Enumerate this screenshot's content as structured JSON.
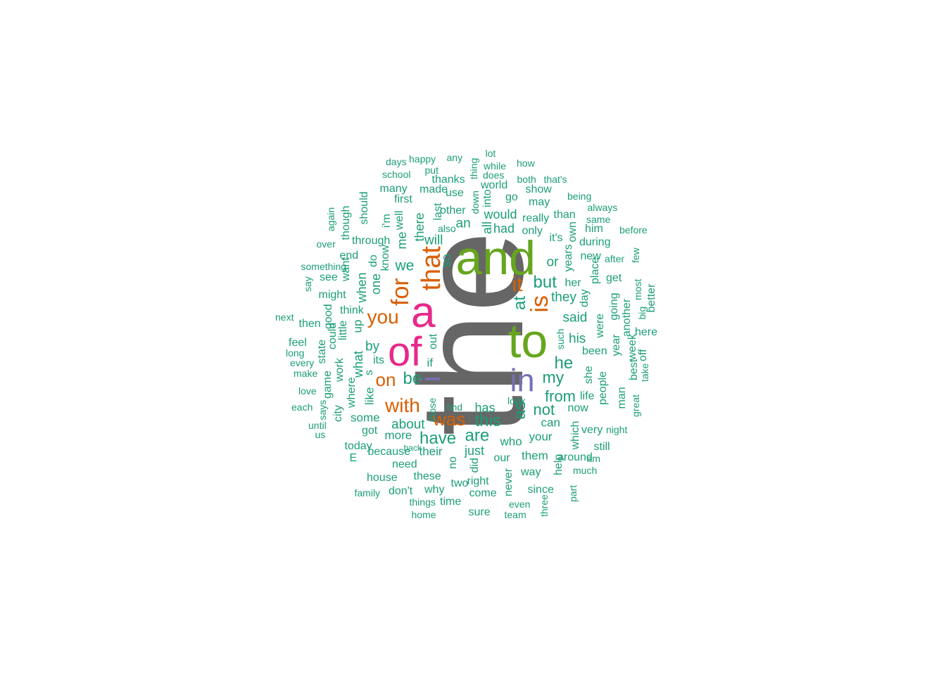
{
  "colors": {
    "gray": "#666666",
    "green": "#66a61e",
    "pink": "#e7298a",
    "purple": "#7570b3",
    "orange": "#d95f02",
    "teal": "#1b9e77"
  },
  "words": [
    {
      "t": "the",
      "c": "gray"
    },
    {
      "t": "and",
      "c": "green"
    },
    {
      "t": "to",
      "c": "green"
    },
    {
      "t": "a",
      "c": "pink"
    },
    {
      "t": "of",
      "c": "pink"
    },
    {
      "t": "in",
      "c": "purple"
    },
    {
      "t": "i",
      "c": "purple"
    },
    {
      "t": "that",
      "c": "orange"
    },
    {
      "t": "for",
      "c": "orange"
    },
    {
      "t": "is",
      "c": "orange"
    },
    {
      "t": "it",
      "c": "orange"
    },
    {
      "t": "you",
      "c": "orange"
    },
    {
      "t": "with",
      "c": "orange"
    },
    {
      "t": "on",
      "c": "orange"
    },
    {
      "t": "was",
      "c": "orange"
    },
    {
      "t": "have",
      "c": "teal"
    },
    {
      "t": "are",
      "c": "teal"
    },
    {
      "t": "this",
      "c": "teal"
    },
    {
      "t": "be",
      "c": "teal"
    },
    {
      "t": "as",
      "c": "teal"
    },
    {
      "t": "at",
      "c": "teal"
    },
    {
      "t": "but",
      "c": "teal"
    },
    {
      "t": "he",
      "c": "teal"
    },
    {
      "t": "my",
      "c": "teal"
    },
    {
      "t": "from",
      "c": "teal"
    },
    {
      "t": "not",
      "c": "teal"
    },
    {
      "t": "we",
      "c": "teal"
    },
    {
      "t": "or",
      "c": "teal"
    },
    {
      "t": "they",
      "c": "teal"
    },
    {
      "t": "said",
      "c": "teal"
    },
    {
      "t": "his",
      "c": "teal"
    },
    {
      "t": "will",
      "c": "teal"
    },
    {
      "t": "by",
      "c": "teal"
    },
    {
      "t": "an",
      "c": "teal"
    },
    {
      "t": "about",
      "c": "teal"
    },
    {
      "t": "has",
      "c": "teal"
    },
    {
      "t": "just",
      "c": "teal"
    },
    {
      "t": "all",
      "c": "teal"
    },
    {
      "t": "had",
      "c": "teal"
    },
    {
      "t": "would",
      "c": "teal"
    },
    {
      "t": "so",
      "c": "teal"
    },
    {
      "t": "there",
      "c": "teal"
    },
    {
      "t": "me",
      "c": "teal"
    },
    {
      "t": "one",
      "c": "teal"
    },
    {
      "t": "when",
      "c": "teal"
    },
    {
      "t": "what",
      "c": "teal"
    },
    {
      "t": "if",
      "c": "teal"
    },
    {
      "t": "out",
      "c": "teal"
    },
    {
      "t": "up",
      "c": "teal"
    },
    {
      "t": "some",
      "c": "teal"
    },
    {
      "t": "like",
      "c": "teal"
    },
    {
      "t": "more",
      "c": "teal"
    },
    {
      "t": "their",
      "c": "teal"
    },
    {
      "t": "who",
      "c": "teal"
    },
    {
      "t": "your",
      "c": "teal"
    },
    {
      "t": "can",
      "c": "teal"
    },
    {
      "t": "them",
      "c": "teal"
    },
    {
      "t": "our",
      "c": "teal"
    },
    {
      "t": "she",
      "c": "teal"
    },
    {
      "t": "been",
      "c": "teal"
    },
    {
      "t": "her",
      "c": "teal"
    },
    {
      "t": "it's",
      "c": "teal"
    },
    {
      "t": "were",
      "c": "teal"
    },
    {
      "t": "year",
      "c": "teal"
    },
    {
      "t": "going",
      "c": "teal"
    },
    {
      "t": "people",
      "c": "teal"
    },
    {
      "t": "now",
      "c": "teal"
    },
    {
      "t": "life",
      "c": "teal"
    },
    {
      "t": "which",
      "c": "teal"
    },
    {
      "t": "very",
      "c": "teal"
    },
    {
      "t": "still",
      "c": "teal"
    },
    {
      "t": "around",
      "c": "teal"
    },
    {
      "t": "am",
      "c": "teal"
    },
    {
      "t": "help",
      "c": "teal"
    },
    {
      "t": "way",
      "c": "teal"
    },
    {
      "t": "much",
      "c": "teal"
    },
    {
      "t": "since",
      "c": "teal"
    },
    {
      "t": "never",
      "c": "teal"
    },
    {
      "t": "even",
      "c": "teal"
    },
    {
      "t": "three",
      "c": "teal"
    },
    {
      "t": "part",
      "c": "teal"
    },
    {
      "t": "team",
      "c": "teal"
    },
    {
      "t": "sure",
      "c": "teal"
    },
    {
      "t": "come",
      "c": "teal"
    },
    {
      "t": "right",
      "c": "teal"
    },
    {
      "t": "two",
      "c": "teal"
    },
    {
      "t": "did",
      "c": "teal"
    },
    {
      "t": "no",
      "c": "teal"
    },
    {
      "t": "time",
      "c": "teal"
    },
    {
      "t": "things",
      "c": "teal"
    },
    {
      "t": "why",
      "c": "teal"
    },
    {
      "t": "these",
      "c": "teal"
    },
    {
      "t": "don't",
      "c": "teal"
    },
    {
      "t": "home",
      "c": "teal"
    },
    {
      "t": "family",
      "c": "teal"
    },
    {
      "t": "house",
      "c": "teal"
    },
    {
      "t": "need",
      "c": "teal"
    },
    {
      "t": "because",
      "c": "teal"
    },
    {
      "t": "back",
      "c": "teal"
    },
    {
      "t": "E",
      "c": "teal"
    },
    {
      "t": "today",
      "c": "teal"
    },
    {
      "t": "got",
      "c": "teal"
    },
    {
      "t": "us",
      "c": "teal"
    },
    {
      "t": "until",
      "c": "teal"
    },
    {
      "t": "each",
      "c": "teal"
    },
    {
      "t": "says",
      "c": "teal"
    },
    {
      "t": "city",
      "c": "teal"
    },
    {
      "t": "where",
      "c": "teal"
    },
    {
      "t": "love",
      "c": "teal"
    },
    {
      "t": "game",
      "c": "teal"
    },
    {
      "t": "work",
      "c": "teal"
    },
    {
      "t": "make",
      "c": "teal"
    },
    {
      "t": "every",
      "c": "teal"
    },
    {
      "t": "long",
      "c": "teal"
    },
    {
      "t": "feel",
      "c": "teal"
    },
    {
      "t": "state",
      "c": "teal"
    },
    {
      "t": "could",
      "c": "teal"
    },
    {
      "t": "little",
      "c": "teal"
    },
    {
      "t": "good",
      "c": "teal"
    },
    {
      "t": "think",
      "c": "teal"
    },
    {
      "t": "then",
      "c": "teal"
    },
    {
      "t": "next",
      "c": "teal"
    },
    {
      "t": "might",
      "c": "teal"
    },
    {
      "t": "see",
      "c": "teal"
    },
    {
      "t": "say",
      "c": "teal"
    },
    {
      "t": "something",
      "c": "teal"
    },
    {
      "t": "end",
      "c": "teal"
    },
    {
      "t": "want",
      "c": "teal"
    },
    {
      "t": "over",
      "c": "teal"
    },
    {
      "t": "again",
      "c": "teal"
    },
    {
      "t": "though",
      "c": "teal"
    },
    {
      "t": "should",
      "c": "teal"
    },
    {
      "t": "through",
      "c": "teal"
    },
    {
      "t": "know",
      "c": "teal"
    },
    {
      "t": "do",
      "c": "teal"
    },
    {
      "t": "i'm",
      "c": "teal"
    },
    {
      "t": "well",
      "c": "teal"
    },
    {
      "t": "first",
      "c": "teal"
    },
    {
      "t": "many",
      "c": "teal"
    },
    {
      "t": "school",
      "c": "teal"
    },
    {
      "t": "days",
      "c": "teal"
    },
    {
      "t": "happy",
      "c": "teal"
    },
    {
      "t": "put",
      "c": "teal"
    },
    {
      "t": "thanks",
      "c": "teal"
    },
    {
      "t": "made",
      "c": "teal"
    },
    {
      "t": "any",
      "c": "teal"
    },
    {
      "t": "use",
      "c": "teal"
    },
    {
      "t": "last",
      "c": "teal"
    },
    {
      "t": "other",
      "c": "teal"
    },
    {
      "t": "also",
      "c": "teal"
    },
    {
      "t": "lot",
      "c": "teal"
    },
    {
      "t": "thing",
      "c": "teal"
    },
    {
      "t": "while",
      "c": "teal"
    },
    {
      "t": "does",
      "c": "teal"
    },
    {
      "t": "world",
      "c": "teal"
    },
    {
      "t": "down",
      "c": "teal"
    },
    {
      "t": "into",
      "c": "teal"
    },
    {
      "t": "go",
      "c": "teal"
    },
    {
      "t": "only",
      "c": "teal"
    },
    {
      "t": "how",
      "c": "teal"
    },
    {
      "t": "both",
      "c": "teal"
    },
    {
      "t": "that's",
      "c": "teal"
    },
    {
      "t": "show",
      "c": "teal"
    },
    {
      "t": "may",
      "c": "teal"
    },
    {
      "t": "really",
      "c": "teal"
    },
    {
      "t": "than",
      "c": "teal"
    },
    {
      "t": "being",
      "c": "teal"
    },
    {
      "t": "always",
      "c": "teal"
    },
    {
      "t": "same",
      "c": "teal"
    },
    {
      "t": "own",
      "c": "teal"
    },
    {
      "t": "him",
      "c": "teal"
    },
    {
      "t": "before",
      "c": "teal"
    },
    {
      "t": "during",
      "c": "teal"
    },
    {
      "t": "years",
      "c": "teal"
    },
    {
      "t": "new",
      "c": "teal"
    },
    {
      "t": "after",
      "c": "teal"
    },
    {
      "t": "few",
      "c": "teal"
    },
    {
      "t": "place",
      "c": "teal"
    },
    {
      "t": "day",
      "c": "teal"
    },
    {
      "t": "get",
      "c": "teal"
    },
    {
      "t": "most",
      "c": "teal"
    },
    {
      "t": "big",
      "c": "teal"
    },
    {
      "t": "better",
      "c": "teal"
    },
    {
      "t": "another",
      "c": "teal"
    },
    {
      "t": "here",
      "c": "teal"
    },
    {
      "t": "week",
      "c": "teal"
    },
    {
      "t": "off",
      "c": "teal"
    },
    {
      "t": "best",
      "c": "teal"
    },
    {
      "t": "take",
      "c": "teal"
    },
    {
      "t": "man",
      "c": "teal"
    },
    {
      "t": "great",
      "c": "teal"
    },
    {
      "t": "night",
      "c": "teal"
    },
    {
      "t": "such",
      "c": "teal"
    },
    {
      "t": "look",
      "c": "teal"
    },
    {
      "t": "find",
      "c": "teal"
    },
    {
      "t": "those",
      "c": "teal"
    },
    {
      "t": "its",
      "c": "teal"
    },
    {
      "t": "s",
      "c": "teal"
    },
    {
      "t": "too",
      "c": "teal"
    }
  ]
}
